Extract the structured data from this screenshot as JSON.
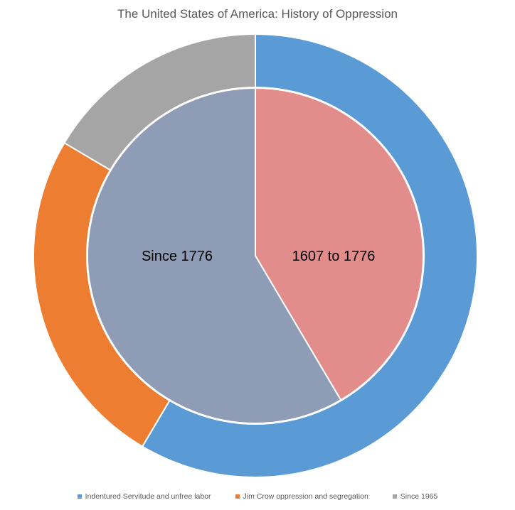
{
  "chart_data": {
    "type": "pie",
    "subtype": "nested-donut",
    "title": "The United States of America: History of Oppression",
    "outer_ring": [
      {
        "name": "Indentured Servitude and unfree labor",
        "value": 58.5,
        "color": "#5B9BD5"
      },
      {
        "name": "Jim Crow oppression and segregation",
        "value": 25.0,
        "color": "#ED7D31"
      },
      {
        "name": "Since 1965",
        "value": 16.5,
        "color": "#A5A5A5"
      }
    ],
    "inner_pie": [
      {
        "label": "1607 to 1776",
        "value": 41.5,
        "color": "#E28C8C"
      },
      {
        "label": "Since 1776",
        "value": 58.5,
        "color": "#8E9CB6"
      }
    ],
    "legend_position": "bottom"
  }
}
